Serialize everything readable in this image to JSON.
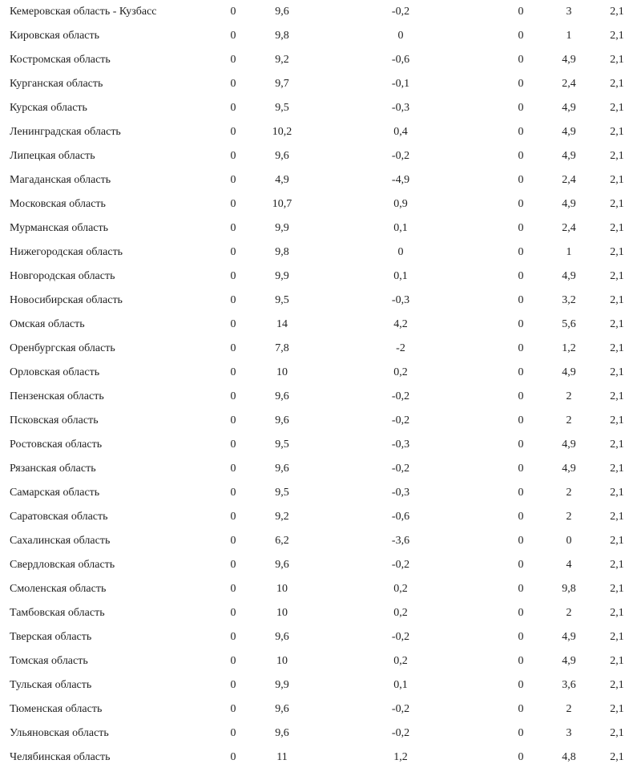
{
  "table": {
    "rows": [
      [
        "Кемеровская область - Кузбасс",
        "0",
        "9,6",
        "-0,2",
        "0",
        "3",
        "2,1"
      ],
      [
        "Кировская область",
        "0",
        "9,8",
        "0",
        "0",
        "1",
        "2,1"
      ],
      [
        "Костромская область",
        "0",
        "9,2",
        "-0,6",
        "0",
        "4,9",
        "2,1"
      ],
      [
        "Курганская область",
        "0",
        "9,7",
        "-0,1",
        "0",
        "2,4",
        "2,1"
      ],
      [
        "Курская область",
        "0",
        "9,5",
        "-0,3",
        "0",
        "4,9",
        "2,1"
      ],
      [
        "Ленинградская область",
        "0",
        "10,2",
        "0,4",
        "0",
        "4,9",
        "2,1"
      ],
      [
        "Липецкая область",
        "0",
        "9,6",
        "-0,2",
        "0",
        "4,9",
        "2,1"
      ],
      [
        "Магаданская область",
        "0",
        "4,9",
        "-4,9",
        "0",
        "2,4",
        "2,1"
      ],
      [
        "Московская область",
        "0",
        "10,7",
        "0,9",
        "0",
        "4,9",
        "2,1"
      ],
      [
        "Мурманская область",
        "0",
        "9,9",
        "0,1",
        "0",
        "2,4",
        "2,1"
      ],
      [
        "Нижегородская область",
        "0",
        "9,8",
        "0",
        "0",
        "1",
        "2,1"
      ],
      [
        "Новгородская область",
        "0",
        "9,9",
        "0,1",
        "0",
        "4,9",
        "2,1"
      ],
      [
        "Новосибирская область",
        "0",
        "9,5",
        "-0,3",
        "0",
        "3,2",
        "2,1"
      ],
      [
        "Омская область",
        "0",
        "14",
        "4,2",
        "0",
        "5,6",
        "2,1"
      ],
      [
        "Оренбургская область",
        "0",
        "7,8",
        "-2",
        "0",
        "1,2",
        "2,1"
      ],
      [
        "Орловская область",
        "0",
        "10",
        "0,2",
        "0",
        "4,9",
        "2,1"
      ],
      [
        "Пензенская область",
        "0",
        "9,6",
        "-0,2",
        "0",
        "2",
        "2,1"
      ],
      [
        "Псковская область",
        "0",
        "9,6",
        "-0,2",
        "0",
        "2",
        "2,1"
      ],
      [
        "Ростовская область",
        "0",
        "9,5",
        "-0,3",
        "0",
        "4,9",
        "2,1"
      ],
      [
        "Рязанская область",
        "0",
        "9,6",
        "-0,2",
        "0",
        "4,9",
        "2,1"
      ],
      [
        "Самарская область",
        "0",
        "9,5",
        "-0,3",
        "0",
        "2",
        "2,1"
      ],
      [
        "Саратовская область",
        "0",
        "9,2",
        "-0,6",
        "0",
        "2",
        "2,1"
      ],
      [
        "Сахалинская область",
        "0",
        "6,2",
        "-3,6",
        "0",
        "0",
        "2,1"
      ],
      [
        "Свердловская область",
        "0",
        "9,6",
        "-0,2",
        "0",
        "4",
        "2,1"
      ],
      [
        "Смоленская область",
        "0",
        "10",
        "0,2",
        "0",
        "9,8",
        "2,1"
      ],
      [
        "Тамбовская область",
        "0",
        "10",
        "0,2",
        "0",
        "2",
        "2,1"
      ],
      [
        "Тверская область",
        "0",
        "9,6",
        "-0,2",
        "0",
        "4,9",
        "2,1"
      ],
      [
        "Томская область",
        "0",
        "10",
        "0,2",
        "0",
        "4,9",
        "2,1"
      ],
      [
        "Тульская область",
        "0",
        "9,9",
        "0,1",
        "0",
        "3,6",
        "2,1"
      ],
      [
        "Тюменская область",
        "0",
        "9,6",
        "-0,2",
        "0",
        "2",
        "2,1"
      ],
      [
        "Ульяновская область",
        "0",
        "9,6",
        "-0,2",
        "0",
        "3",
        "2,1"
      ],
      [
        "Челябинская область",
        "0",
        "11",
        "1,2",
        "0",
        "4,8",
        "2,1"
      ]
    ]
  }
}
